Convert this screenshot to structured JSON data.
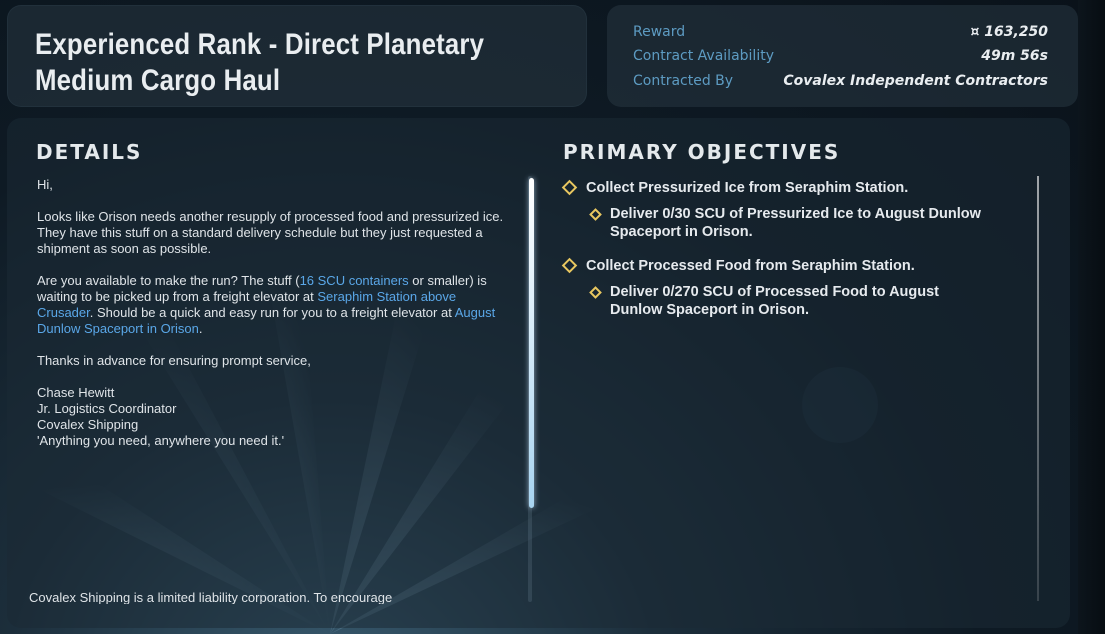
{
  "contract": {
    "title": "Experienced Rank - Direct Planetary Medium Cargo Haul"
  },
  "info": {
    "reward_label": "Reward",
    "reward_value": "¤ 163,250",
    "availability_label": "Contract Availability",
    "availability_value": "49m 56s",
    "contracted_by_label": "Contracted By",
    "contracted_by_value": "Covalex Independent Contractors"
  },
  "details": {
    "heading": "DETAILS",
    "greeting": "Hi,",
    "para1": "Looks like Orison needs another resupply of processed food and pressurized ice. They have this stuff on a standard delivery schedule but they just requested a shipment as soon as possible.",
    "para2_a": "Are you available to make the run? The stuff (",
    "para2_link1": "16 SCU containers",
    "para2_b": " or smaller) is waiting to be picked up from a freight elevator at ",
    "para2_link2": "Seraphim Station above Crusader",
    "para2_c": ". Should be a quick and easy run for you to a freight elevator at ",
    "para2_link3": "August Dunlow Spaceport in Orison",
    "para2_d": ".",
    "para3": "Thanks in advance for ensuring prompt service,",
    "sig_name": "Chase Hewitt",
    "sig_title": "Jr. Logistics Coordinator",
    "sig_company": "Covalex Shipping",
    "sig_motto": "'Anything you need, anywhere you need it.'",
    "footer": "Covalex Shipping is a limited liability corporation. To encourage"
  },
  "objectives": {
    "heading": "PRIMARY OBJECTIVES",
    "items": [
      {
        "label": "Collect Pressurized Ice from Seraphim Station.",
        "sub": "Deliver 0/30 SCU of Pressurized Ice to August Dunlow Spaceport in Orison."
      },
      {
        "label": "Collect Processed Food from Seraphim Station.",
        "sub": "Deliver 0/270 SCU of Processed Food to August Dunlow Spaceport in Orison."
      }
    ]
  },
  "colors": {
    "accent_link": "#5aa7e8",
    "label_blue": "#5d9bc2",
    "objective_diamond": "#e8c760"
  }
}
